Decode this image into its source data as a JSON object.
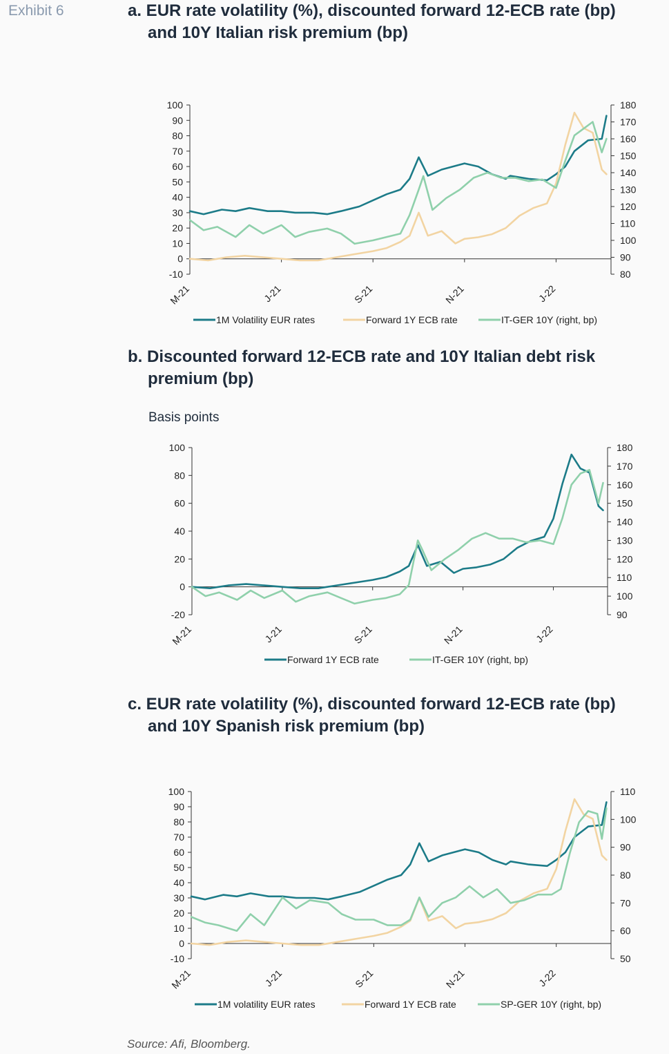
{
  "exhibit_label": "Exhibit 6",
  "source": "Source: Afi, Bloomberg.",
  "chart_data": [
    {
      "type": "line",
      "title_line1": "a. EUR rate volatility (%), discounted forward 12-ECB rate (bp)",
      "title_line2": "and 10Y Italian risk premium (bp)",
      "subtitle": "",
      "x_tick_labels": [
        "M-21",
        "J-21",
        "S-21",
        "N-21",
        "J-22"
      ],
      "x_tick_positions": [
        0,
        2,
        4,
        6,
        8
      ],
      "x_range": [
        0,
        9.2
      ],
      "ylim_left": [
        -10,
        100
      ],
      "yticks_left": [
        -10,
        0,
        10,
        20,
        30,
        40,
        50,
        60,
        70,
        80,
        90,
        100
      ],
      "ylim_right": [
        80,
        180
      ],
      "yticks_right": [
        80,
        90,
        100,
        110,
        120,
        130,
        140,
        150,
        160,
        170,
        180
      ],
      "grid": false,
      "legend_position": "bottom",
      "series": [
        {
          "name": "1M Volatility EUR rates",
          "axis": "left",
          "color": "#1c7b88",
          "x": [
            0,
            0.3,
            0.7,
            1,
            1.3,
            1.7,
            2,
            2.3,
            2.7,
            3,
            3.3,
            3.7,
            4,
            4.3,
            4.6,
            4.8,
            5,
            5.2,
            5.5,
            6,
            6.3,
            6.6,
            6.9,
            7,
            7.4,
            7.8,
            8,
            8.2,
            8.4,
            8.7,
            9.0,
            9.1
          ],
          "y": [
            31,
            29,
            32,
            31,
            33,
            31,
            31,
            30,
            30,
            29,
            31,
            34,
            38,
            42,
            45,
            52,
            66,
            54,
            58,
            62,
            60,
            55,
            52,
            54,
            52,
            51,
            55,
            60,
            70,
            77,
            78,
            93
          ]
        },
        {
          "name": "Forward 1Y ECB rate",
          "axis": "left",
          "color": "#f2d4a2",
          "x": [
            0,
            0.4,
            0.8,
            1.2,
            1.6,
            2,
            2.4,
            2.8,
            3.2,
            3.6,
            4,
            4.3,
            4.6,
            4.8,
            5,
            5.2,
            5.5,
            5.8,
            6,
            6.3,
            6.6,
            6.9,
            7.2,
            7.5,
            7.8,
            8,
            8.2,
            8.4,
            8.6,
            8.8,
            9.0,
            9.1
          ],
          "y": [
            0,
            -1,
            1,
            2,
            1,
            0,
            -1,
            -1,
            1,
            3,
            5,
            7,
            11,
            15,
            30,
            15,
            18,
            10,
            13,
            14,
            16,
            20,
            28,
            33,
            36,
            49,
            74,
            95,
            85,
            82,
            58,
            55
          ]
        },
        {
          "name": "IT-GER 10Y (right, bp)",
          "axis": "right",
          "color": "#8fd0ab",
          "x": [
            0,
            0.3,
            0.6,
            1,
            1.3,
            1.6,
            2,
            2.3,
            2.6,
            3,
            3.3,
            3.6,
            4,
            4.3,
            4.6,
            4.8,
            5,
            5.1,
            5.3,
            5.6,
            5.9,
            6.2,
            6.5,
            6.8,
            7.1,
            7.4,
            7.7,
            8,
            8.2,
            8.4,
            8.6,
            8.8,
            9.0,
            9.1
          ],
          "y": [
            112,
            106,
            108,
            102,
            109,
            104,
            109,
            102,
            105,
            107,
            104,
            98,
            100,
            102,
            104,
            115,
            130,
            138,
            118,
            125,
            130,
            137,
            140,
            137,
            137,
            135,
            136,
            131,
            147,
            162,
            166,
            170,
            152,
            160
          ]
        }
      ]
    },
    {
      "type": "line",
      "title_line1": "b. Discounted forward 12-ECB rate and 10Y Italian debt risk",
      "title_line2": "premium (bp)",
      "subtitle": "Basis points",
      "x_tick_labels": [
        "M-21",
        "J-21",
        "S-21",
        "N-21",
        "J-22"
      ],
      "x_tick_positions": [
        0,
        2,
        4,
        6,
        8
      ],
      "x_range": [
        0,
        9.2
      ],
      "ylim_left": [
        -20,
        100
      ],
      "yticks_left": [
        -20,
        0,
        20,
        40,
        60,
        80,
        100
      ],
      "ylim_right": [
        90,
        180
      ],
      "yticks_right": [
        90,
        100,
        110,
        120,
        130,
        140,
        150,
        160,
        170,
        180
      ],
      "grid": false,
      "legend_position": "bottom",
      "series": [
        {
          "name": "Forward 1Y ECB rate",
          "axis": "left",
          "color": "#1c7b88",
          "x": [
            0,
            0.4,
            0.8,
            1.2,
            1.6,
            2,
            2.4,
            2.8,
            3.2,
            3.6,
            4,
            4.3,
            4.6,
            4.8,
            5,
            5.2,
            5.5,
            5.8,
            6,
            6.3,
            6.6,
            6.9,
            7.2,
            7.5,
            7.8,
            8,
            8.2,
            8.4,
            8.6,
            8.8,
            9.0,
            9.1
          ],
          "y": [
            0,
            -1,
            1,
            2,
            1,
            0,
            -1,
            -1,
            1,
            3,
            5,
            7,
            11,
            15,
            30,
            15,
            18,
            10,
            13,
            14,
            16,
            20,
            28,
            33,
            36,
            49,
            74,
            95,
            85,
            82,
            58,
            55
          ]
        },
        {
          "name": "IT-GER 10Y (right, bp)",
          "axis": "right",
          "color": "#8fd0ab",
          "x": [
            0,
            0.3,
            0.6,
            1,
            1.3,
            1.6,
            2,
            2.3,
            2.6,
            3,
            3.3,
            3.6,
            4,
            4.3,
            4.6,
            4.8,
            5,
            5.1,
            5.3,
            5.6,
            5.9,
            6.2,
            6.5,
            6.8,
            7.1,
            7.4,
            7.7,
            8,
            8.2,
            8.4,
            8.6,
            8.8,
            9.0,
            9.1
          ],
          "y": [
            105,
            100,
            102,
            98,
            103,
            99,
            103,
            97,
            100,
            102,
            99,
            96,
            98,
            99,
            101,
            106,
            130,
            125,
            114,
            120,
            125,
            131,
            134,
            131,
            131,
            129,
            130,
            128,
            142,
            160,
            166,
            168,
            150,
            161
          ]
        }
      ]
    },
    {
      "type": "line",
      "title_line1": "c. EUR rate volatility (%), discounted forward 12-ECB rate (bp)",
      "title_line2": "and 10Y Spanish risk premium (bp)",
      "subtitle": "",
      "x_tick_labels": [
        "M-21",
        "J-21",
        "S-21",
        "N-21",
        "J-22"
      ],
      "x_tick_positions": [
        0,
        2,
        4,
        6,
        8
      ],
      "x_range": [
        0,
        9.2
      ],
      "ylim_left": [
        -10,
        100
      ],
      "yticks_left": [
        -10,
        0,
        10,
        20,
        30,
        40,
        50,
        60,
        70,
        80,
        90,
        100
      ],
      "ylim_right": [
        50,
        110
      ],
      "yticks_right": [
        50,
        60,
        70,
        80,
        90,
        100,
        110
      ],
      "grid": false,
      "legend_position": "bottom",
      "series": [
        {
          "name": "1M volatility EUR rates",
          "axis": "left",
          "color": "#1c7b88",
          "x": [
            0,
            0.3,
            0.7,
            1,
            1.3,
            1.7,
            2,
            2.3,
            2.7,
            3,
            3.3,
            3.7,
            4,
            4.3,
            4.6,
            4.8,
            5,
            5.2,
            5.5,
            6,
            6.3,
            6.6,
            6.9,
            7,
            7.4,
            7.8,
            8,
            8.2,
            8.4,
            8.7,
            9.0,
            9.1
          ],
          "y": [
            31,
            29,
            32,
            31,
            33,
            31,
            31,
            30,
            30,
            29,
            31,
            34,
            38,
            42,
            45,
            52,
            66,
            54,
            58,
            62,
            60,
            55,
            52,
            54,
            52,
            51,
            55,
            60,
            70,
            77,
            78,
            93
          ]
        },
        {
          "name": "Forward 1Y ECB rate",
          "axis": "left",
          "color": "#f2d4a2",
          "x": [
            0,
            0.4,
            0.8,
            1.2,
            1.6,
            2,
            2.4,
            2.8,
            3.2,
            3.6,
            4,
            4.3,
            4.6,
            4.8,
            5,
            5.2,
            5.5,
            5.8,
            6,
            6.3,
            6.6,
            6.9,
            7.2,
            7.5,
            7.8,
            8,
            8.2,
            8.4,
            8.6,
            8.8,
            9.0,
            9.1
          ],
          "y": [
            0,
            -1,
            1,
            2,
            1,
            0,
            -1,
            -1,
            1,
            3,
            5,
            7,
            11,
            15,
            30,
            15,
            18,
            10,
            13,
            14,
            16,
            20,
            28,
            33,
            36,
            49,
            74,
            95,
            85,
            82,
            58,
            55
          ]
        },
        {
          "name": "SP-GER 10Y (right, bp)",
          "axis": "right",
          "color": "#8fd0ab",
          "x": [
            0,
            0.3,
            0.6,
            1,
            1.3,
            1.6,
            2,
            2.3,
            2.6,
            3,
            3.3,
            3.6,
            4,
            4.3,
            4.6,
            4.8,
            5,
            5.2,
            5.5,
            5.8,
            6.1,
            6.4,
            6.7,
            7,
            7.3,
            7.6,
            7.9,
            8.1,
            8.3,
            8.5,
            8.7,
            8.9,
            9.0,
            9.1
          ],
          "y": [
            65,
            63,
            62,
            60,
            66,
            62,
            72,
            68,
            71,
            70,
            66,
            64,
            64,
            62,
            62,
            64,
            72,
            65,
            70,
            72,
            76,
            72,
            75,
            70,
            71,
            73,
            73,
            75,
            88,
            99,
            103,
            102,
            93,
            104
          ]
        }
      ]
    }
  ]
}
